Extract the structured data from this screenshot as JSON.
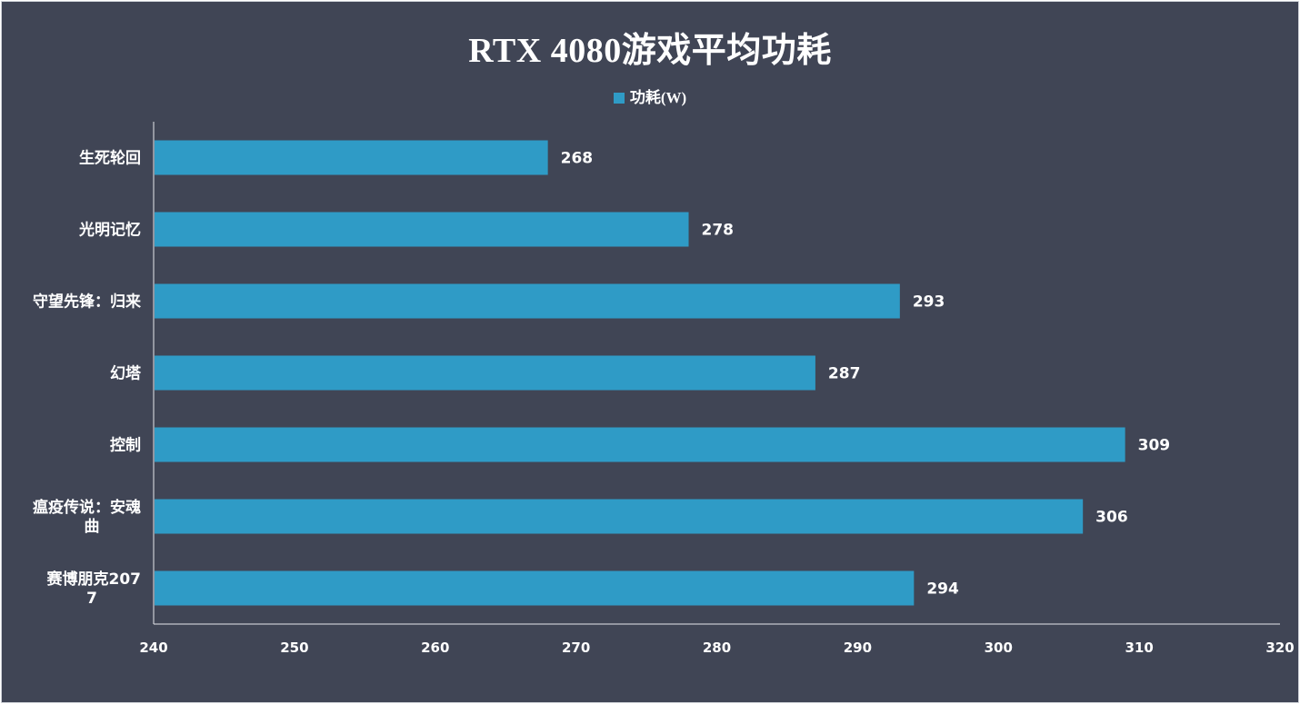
{
  "chart_data": {
    "type": "bar",
    "orientation": "horizontal",
    "title": "RTX 4080游戏平均功耗",
    "categories": [
      "生死轮回",
      "光明记忆",
      "守望先锋：归来",
      "幻塔",
      "控制",
      "瘟疫传说：安魂曲",
      "赛博朋克2077"
    ],
    "series": [
      {
        "name": "功耗(W)",
        "values": [
          268,
          278,
          293,
          287,
          309,
          306,
          294
        ]
      }
    ],
    "xlim": [
      240,
      320
    ],
    "xticks": [
      240,
      250,
      260,
      270,
      280,
      290,
      300,
      310,
      320
    ],
    "xlabel": "",
    "ylabel": "",
    "grid": false,
    "legend_position": "top-center",
    "data_labels": true
  },
  "colors": {
    "background": "#404555",
    "bar": "#2f9bc6",
    "axis": "#e6e8ec",
    "text": "#ffffff"
  }
}
